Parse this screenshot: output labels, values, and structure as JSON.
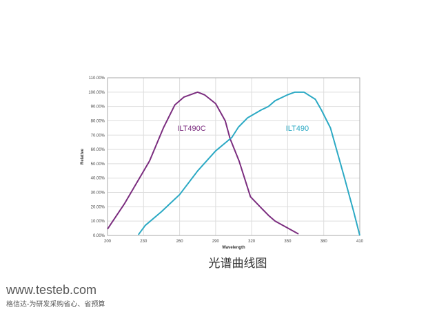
{
  "chart_data": {
    "type": "line",
    "title": "",
    "xlabel": "Wavelength",
    "ylabel": "Relative",
    "xlim": [
      200,
      410
    ],
    "ylim": [
      0,
      110
    ],
    "x_ticks": [
      200,
      230,
      260,
      290,
      320,
      350,
      380,
      410
    ],
    "y_ticks": [
      "0.00%",
      "10.00%",
      "20.00%",
      "30.00%",
      "40.00%",
      "50.00%",
      "60.00%",
      "70.00%",
      "80.00%",
      "90.00%",
      "100.00%",
      "110.00%"
    ],
    "grid": true,
    "series": [
      {
        "name": "ILT490C",
        "color": "#7b2d7f",
        "points": [
          [
            200,
            4.5
          ],
          [
            214,
            22
          ],
          [
            235,
            52
          ],
          [
            246.5,
            75
          ],
          [
            256,
            91
          ],
          [
            263.5,
            96.5
          ],
          [
            275,
            100
          ],
          [
            281,
            98
          ],
          [
            290,
            92
          ],
          [
            298,
            80
          ],
          [
            302,
            67.6
          ],
          [
            309.5,
            52
          ],
          [
            319,
            27
          ],
          [
            327,
            20
          ],
          [
            334,
            14
          ],
          [
            339.5,
            10
          ],
          [
            359,
            1
          ]
        ]
      },
      {
        "name": "ILT490",
        "color": "#2ba9c4",
        "points": [
          [
            225.7,
            0.5
          ],
          [
            231.4,
            7
          ],
          [
            244.8,
            16.5
          ],
          [
            260,
            28.5
          ],
          [
            275,
            45
          ],
          [
            290,
            59
          ],
          [
            303.5,
            68.4
          ],
          [
            309,
            75.6
          ],
          [
            316.5,
            82
          ],
          [
            328,
            87.6
          ],
          [
            334,
            90
          ],
          [
            339.5,
            94
          ],
          [
            349.5,
            98
          ],
          [
            356,
            100
          ],
          [
            363.5,
            100
          ],
          [
            373,
            95
          ],
          [
            378,
            87.6
          ],
          [
            385.6,
            75
          ],
          [
            397,
            41
          ],
          [
            404.8,
            17
          ],
          [
            410,
            0
          ]
        ]
      }
    ],
    "annotations": [
      {
        "text": "ILT490C",
        "x": 270,
        "y": 75
      },
      {
        "text": "ILT490",
        "x": 358,
        "y": 75
      }
    ]
  },
  "caption": "光谱曲线图",
  "watermark": {
    "site": "www.testeb.com",
    "slogan": "格信达-为研发采购省心、省预算"
  }
}
